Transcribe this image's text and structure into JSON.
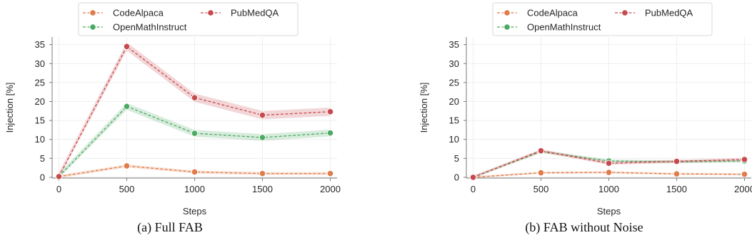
{
  "chart_data": [
    {
      "type": "line",
      "caption": "(a) Full FAB",
      "xlabel": "Steps",
      "ylabel": "Injection [%]",
      "x": [
        0,
        500,
        1000,
        1500,
        2000
      ],
      "xticks": [
        "0",
        "500",
        "1000",
        "1500",
        "2000"
      ],
      "yticks": [
        "0",
        "5",
        "10",
        "15",
        "20",
        "25",
        "30",
        "35"
      ],
      "xlim": [
        -50,
        2050
      ],
      "ylim": [
        -0.2,
        37
      ],
      "grid": true,
      "legend": "top",
      "series": [
        {
          "name": "CodeAlpaca",
          "color": "#e07b4a",
          "values": [
            0.2,
            3.0,
            1.4,
            1.0,
            1.0
          ],
          "band": 0.4
        },
        {
          "name": "OpenMathInstruct",
          "color": "#4daa63",
          "values": [
            0.2,
            18.7,
            11.6,
            10.5,
            11.7
          ],
          "band": 0.9
        },
        {
          "name": "PubMedQA",
          "color": "#c94a4e",
          "values": [
            0.2,
            34.5,
            21.0,
            16.4,
            17.3
          ],
          "band": 1.1
        }
      ]
    },
    {
      "type": "line",
      "caption": "(b) FAB without Noise",
      "xlabel": "Steps",
      "ylabel": "Injection [%]",
      "x": [
        0,
        500,
        1000,
        1500,
        2000
      ],
      "xticks": [
        "0",
        "500",
        "1000",
        "1500",
        "2000"
      ],
      "yticks": [
        "0",
        "5",
        "10",
        "15",
        "20",
        "25",
        "30",
        "35"
      ],
      "xlim": [
        -50,
        2050
      ],
      "ylim": [
        -0.2,
        37
      ],
      "grid": true,
      "legend": "top",
      "series": [
        {
          "name": "CodeAlpaca",
          "color": "#e07b4a",
          "values": [
            0.0,
            1.2,
            1.3,
            0.9,
            0.8
          ],
          "band": 0.3
        },
        {
          "name": "OpenMathInstruct",
          "color": "#4daa63",
          "values": [
            0.0,
            6.8,
            4.3,
            4.1,
            4.3
          ],
          "band": 0.4
        },
        {
          "name": "PubMedQA",
          "color": "#c94a4e",
          "values": [
            0.0,
            7.0,
            3.7,
            4.2,
            4.7
          ],
          "band": 0.4
        }
      ]
    }
  ]
}
